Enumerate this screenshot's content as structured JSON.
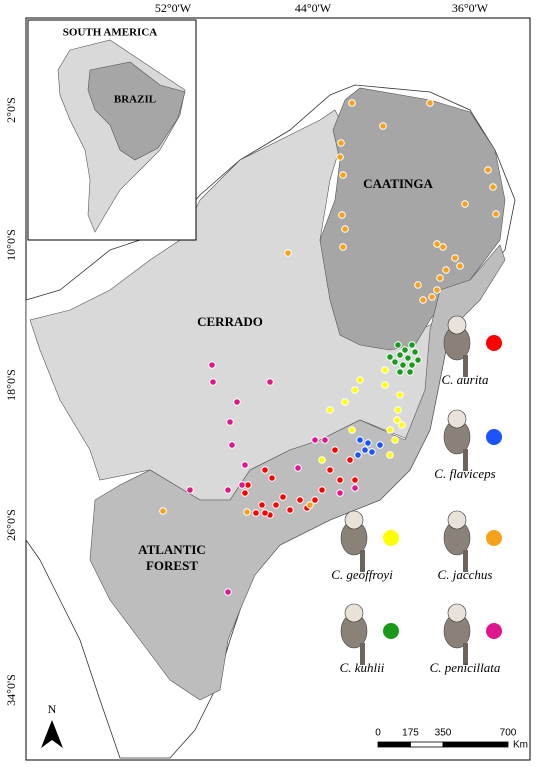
{
  "map": {
    "longitude_labels": [
      "52°0'W",
      "44°0'W",
      "36°0'W"
    ],
    "latitude_labels": [
      "2°0'S",
      "10°0'S",
      "18°0'S",
      "26°0'S",
      "34°0'S"
    ],
    "inset": {
      "title": "SOUTH AMERICA",
      "country": "BRAZIL"
    },
    "biomes": {
      "caatinga": "CAATINGA",
      "cerrado": "CERRADO",
      "atlantic_forest": [
        "ATLANTIC",
        "FOREST"
      ]
    }
  },
  "legend": [
    {
      "name": "C. aurita",
      "color": "#ff0000"
    },
    {
      "name": "C. flaviceps",
      "color": "#1a53ff"
    },
    {
      "name": "C. geoffroyi",
      "color": "#ffff00"
    },
    {
      "name": "C. jacchus",
      "color": "#f7a21b"
    },
    {
      "name": "C. kuhlii",
      "color": "#1a9a1a"
    },
    {
      "name": "C. penicillata",
      "color": "#e0168f"
    }
  ],
  "scale_bar": {
    "ticks": [
      0,
      175,
      350,
      700
    ],
    "unit": "Km"
  },
  "north_arrow": "N"
}
